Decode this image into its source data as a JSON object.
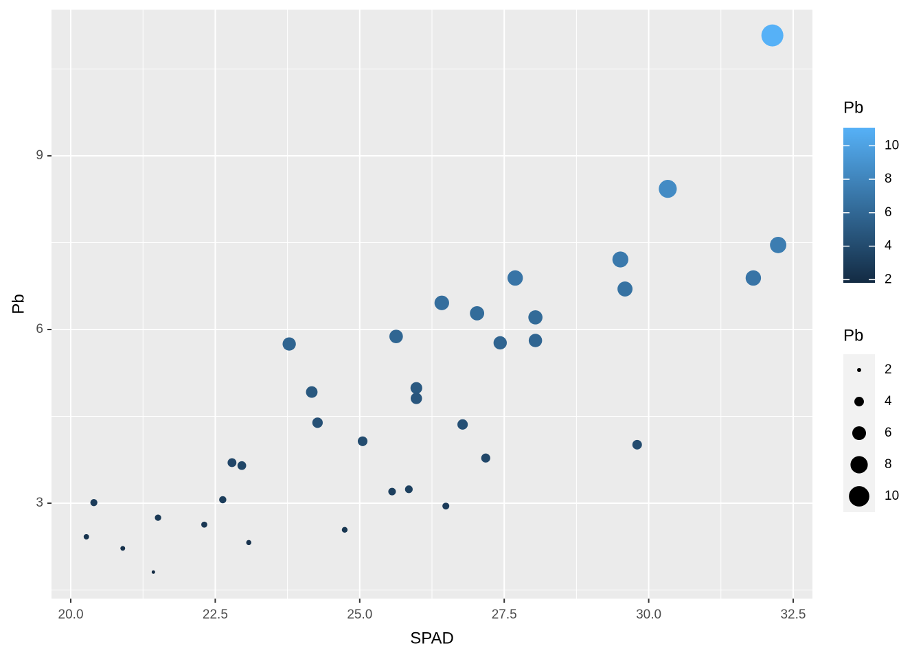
{
  "chart_data": {
    "type": "scatter",
    "x_label": "SPAD",
    "y_label": "Pb",
    "x": [
      32.14,
      30.33,
      32.24,
      29.51,
      31.81,
      29.59,
      27.69,
      26.42,
      27.03,
      28.04,
      25.63,
      27.43,
      28.04,
      23.78,
      24.17,
      25.98,
      25.98,
      24.27,
      26.78,
      25.05,
      29.8,
      27.18,
      22.79,
      22.96,
      25.56,
      25.85,
      22.63,
      20.4,
      26.49,
      21.51,
      22.31,
      24.74,
      20.27,
      23.08,
      20.9,
      21.43
    ],
    "values": [
      11.08,
      8.43,
      7.46,
      7.21,
      6.89,
      6.7,
      6.89,
      6.46,
      6.28,
      6.21,
      5.88,
      5.77,
      5.81,
      5.75,
      4.92,
      4.99,
      4.81,
      4.39,
      4.36,
      4.07,
      4.01,
      3.78,
      3.7,
      3.65,
      3.2,
      3.24,
      3.06,
      3.01,
      2.95,
      2.75,
      2.63,
      2.54,
      2.42,
      2.32,
      2.22,
      1.81
    ],
    "xlim": [
      19.667,
      32.833
    ],
    "ylim": [
      1.352,
      11.526
    ],
    "xticks": [
      {
        "value": 20,
        "label": "20.0"
      },
      22.5,
      {
        "value": 25,
        "label": "25.0"
      },
      27.5,
      {
        "value": 30,
        "label": "30.0"
      },
      32.5
    ],
    "yticks": [
      3,
      6,
      9
    ],
    "grid": true,
    "color_legend": {
      "title": "Pb",
      "low": "#132B43",
      "high": "#56B1F7",
      "ticks": [
        2,
        4,
        6,
        8,
        10
      ]
    },
    "size_legend": {
      "title": "Pb",
      "ticks": [
        2,
        4,
        6,
        8,
        10
      ]
    }
  }
}
